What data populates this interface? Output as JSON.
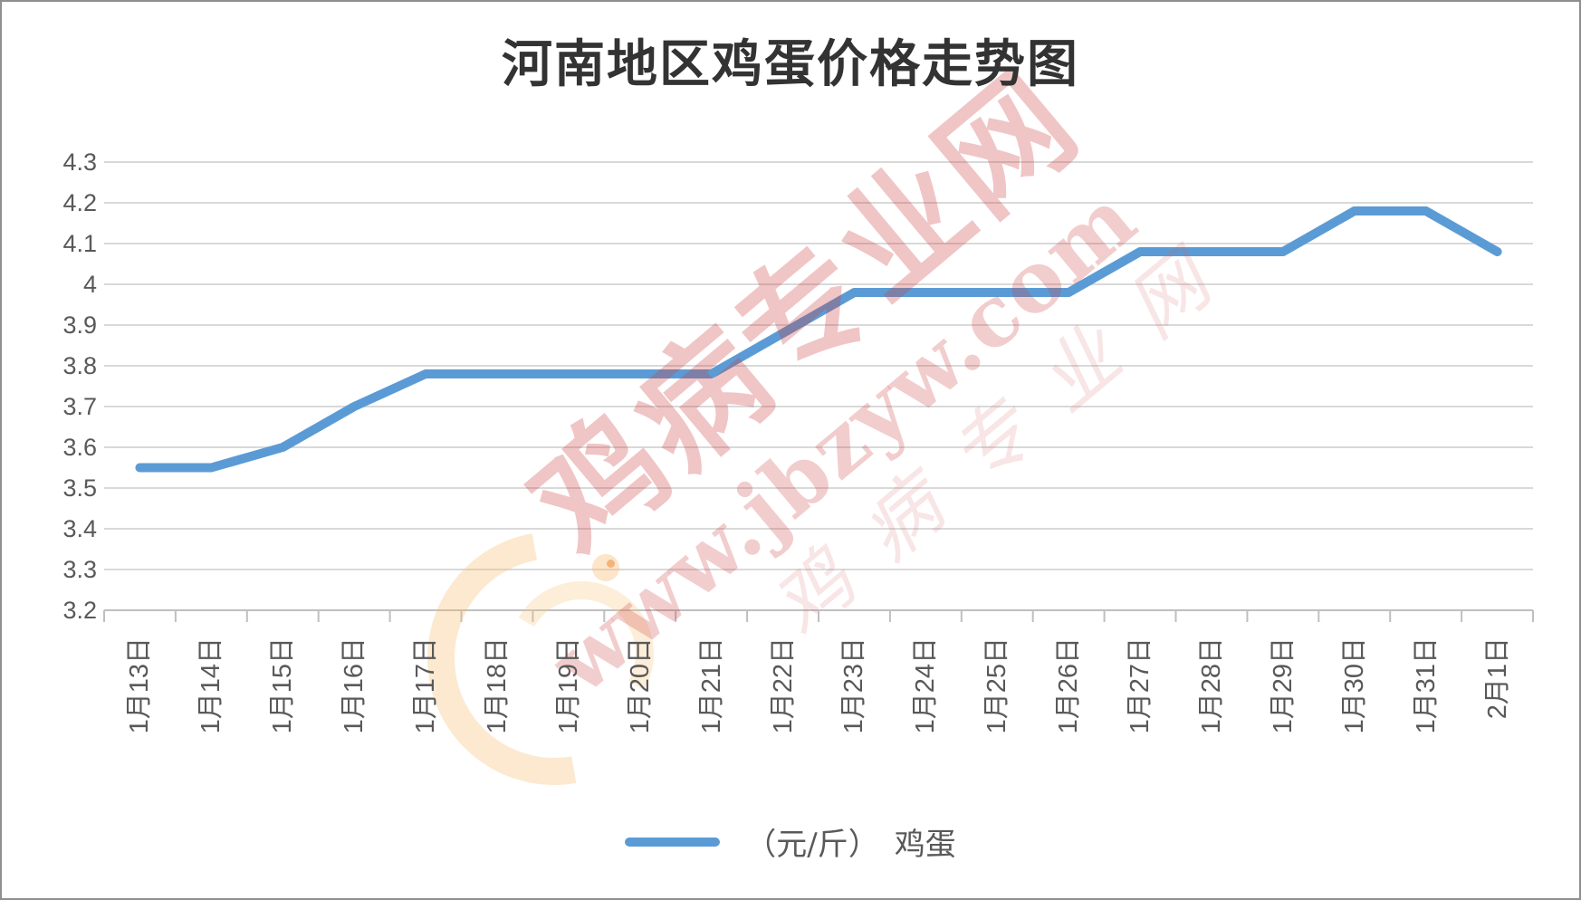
{
  "colors": {
    "line": "#5B9BD5",
    "grid": "#d9d9d9",
    "axis": "#bfbfbf",
    "tick_label": "#595959",
    "title": "#333333",
    "watermark_red": "#CE3E3E"
  },
  "watermark": {
    "brand": "鸡病专业网",
    "url": "www.jbzyw.com",
    "script_text": "鸡病专业网"
  },
  "legend": {
    "label": "（元/斤）　鸡蛋"
  },
  "chart_data": {
    "type": "line",
    "title": "河南地区鸡蛋价格走势图",
    "xlabel": "",
    "ylabel": "",
    "ylim": [
      3.2,
      4.3
    ],
    "y_tick_step": 0.1,
    "y_tick_labels": [
      "4.3",
      "4.2",
      "4.1",
      "4",
      "3.9",
      "3.8",
      "3.7",
      "3.6",
      "3.5",
      "3.4",
      "3.3",
      "3.2"
    ],
    "grid": true,
    "legend_position": "bottom",
    "categories": [
      "1月13日",
      "1月14日",
      "1月15日",
      "1月16日",
      "1月17日",
      "1月18日",
      "1月19日",
      "1月20日",
      "1月21日",
      "1月22日",
      "1月23日",
      "1月24日",
      "1月25日",
      "1月26日",
      "1月27日",
      "1月28日",
      "1月29日",
      "1月30日",
      "1月31日",
      "2月1日"
    ],
    "series": [
      {
        "name": "（元/斤）　鸡蛋",
        "values": [
          3.55,
          3.55,
          3.6,
          3.7,
          3.78,
          3.78,
          3.78,
          3.78,
          3.78,
          3.88,
          3.98,
          3.98,
          3.98,
          3.98,
          4.08,
          4.08,
          4.08,
          4.18,
          4.18,
          4.08
        ]
      }
    ]
  }
}
